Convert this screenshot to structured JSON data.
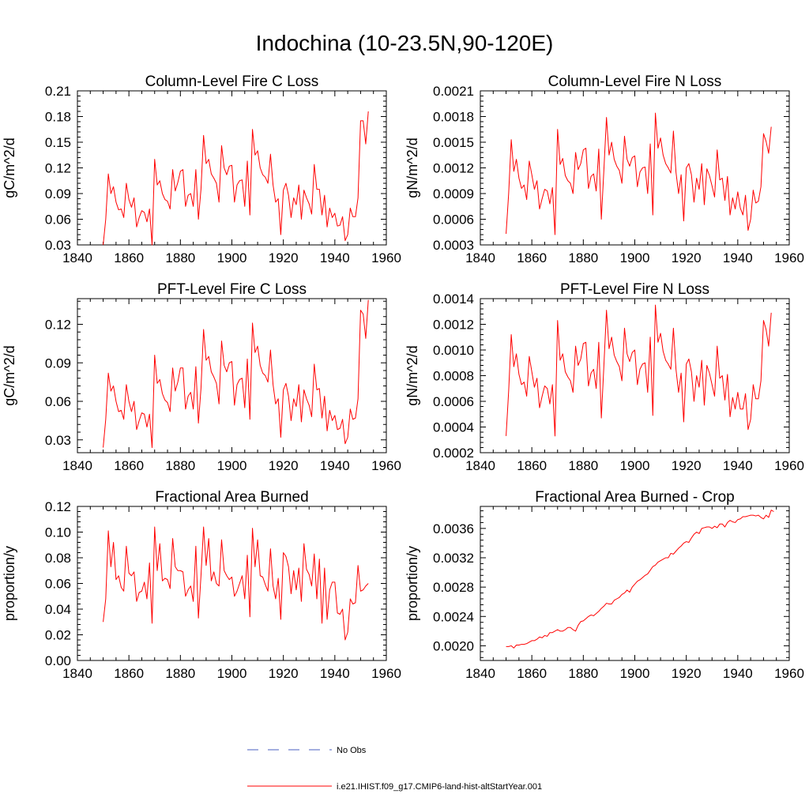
{
  "figure": {
    "title": "Indochina (10-23.5N,90-120E)"
  },
  "legend": [
    {
      "label": "No Obs",
      "color": "#4a5fc1",
      "style": "dashed"
    },
    {
      "label": "i.e21.IHIST.f09_g17.CMIP6-land-hist-altStartYear.001",
      "color": "#ff0000",
      "style": "solid"
    }
  ],
  "chart_data": [
    {
      "type": "line",
      "title": "Column-Level Fire C Loss",
      "ylabel": "gC/m^2/d",
      "xlabel": "",
      "xlim": [
        1840,
        1960
      ],
      "ylim": [
        0.03,
        0.21
      ],
      "xticks": [
        "1840",
        "1860",
        "1880",
        "1900",
        "1920",
        "1940",
        "1960"
      ],
      "yticks": [
        "0.03",
        "0.06",
        "0.09",
        "0.12",
        "0.15",
        "0.18",
        "0.21"
      ],
      "x_start": 1850,
      "series": [
        {
          "color": "#ff0000",
          "values": [
            0.03,
            0.06,
            0.113,
            0.09,
            0.098,
            0.08,
            0.071,
            0.072,
            0.062,
            0.102,
            0.083,
            0.074,
            0.085,
            0.051,
            0.062,
            0.07,
            0.068,
            0.057,
            0.072,
            0.03,
            0.13,
            0.1,
            0.105,
            0.09,
            0.083,
            0.081,
            0.072,
            0.118,
            0.093,
            0.103,
            0.116,
            0.118,
            0.075,
            0.088,
            0.09,
            0.075,
            0.118,
            0.06,
            0.095,
            0.158,
            0.125,
            0.13,
            0.113,
            0.108,
            0.102,
            0.08,
            0.146,
            0.12,
            0.112,
            0.122,
            0.123,
            0.08,
            0.1,
            0.105,
            0.106,
            0.075,
            0.128,
            0.065,
            0.165,
            0.135,
            0.14,
            0.12,
            0.112,
            0.109,
            0.102,
            0.136,
            0.1,
            0.08,
            0.084,
            0.042,
            0.094,
            0.102,
            0.088,
            0.062,
            0.085,
            0.077,
            0.1,
            0.06,
            0.094,
            0.085,
            0.078,
            0.066,
            0.124,
            0.095,
            0.095,
            0.065,
            0.088,
            0.051,
            0.073,
            0.062,
            0.067,
            0.052,
            0.053,
            0.063,
            0.035,
            0.042,
            0.073,
            0.063,
            0.063,
            0.085,
            0.175,
            0.175,
            0.148,
            0.186
          ]
        }
      ]
    },
    {
      "type": "line",
      "title": "Column-Level Fire N Loss",
      "ylabel": "gN/m^2/d",
      "xlabel": "",
      "xlim": [
        1840,
        1960
      ],
      "ylim": [
        0.0003,
        0.0021
      ],
      "xticks": [
        "1840",
        "1860",
        "1880",
        "1900",
        "1920",
        "1940",
        "1960"
      ],
      "yticks": [
        "0.0003",
        "0.0006",
        "0.0009",
        "0.0012",
        "0.0015",
        "0.0018",
        "0.0021"
      ],
      "x_start": 1850,
      "series": [
        {
          "color": "#ff0000",
          "values": [
            0.00043,
            0.0009,
            0.00153,
            0.00116,
            0.0013,
            0.00108,
            0.00096,
            0.001,
            0.00083,
            0.00128,
            0.00112,
            0.00095,
            0.00105,
            0.00072,
            0.00084,
            0.00095,
            0.00093,
            0.00078,
            0.00097,
            0.00042,
            0.00165,
            0.00124,
            0.00131,
            0.00111,
            0.00105,
            0.00102,
            0.0009,
            0.00138,
            0.00118,
            0.00125,
            0.00141,
            0.00143,
            0.00096,
            0.0011,
            0.00113,
            0.00093,
            0.00142,
            0.0006,
            0.00118,
            0.00179,
            0.00135,
            0.0015,
            0.0013,
            0.00122,
            0.00117,
            0.00102,
            0.00157,
            0.0013,
            0.00122,
            0.00132,
            0.00134,
            0.00098,
            0.00115,
            0.0012,
            0.00121,
            0.0009,
            0.00148,
            0.00065,
            0.00184,
            0.00143,
            0.00155,
            0.00135,
            0.00125,
            0.0012,
            0.00114,
            0.00163,
            0.00115,
            0.0009,
            0.00112,
            0.00058,
            0.0012,
            0.00125,
            0.00112,
            0.0008,
            0.00108,
            0.00095,
            0.00125,
            0.00077,
            0.00119,
            0.00111,
            0.00099,
            0.00086,
            0.00141,
            0.00106,
            0.00108,
            0.00082,
            0.0011,
            0.00065,
            0.00085,
            0.00072,
            0.00092,
            0.00073,
            0.00065,
            0.00088,
            0.00047,
            0.0006,
            0.00094,
            0.00079,
            0.00081,
            0.00098,
            0.0016,
            0.00151,
            0.00137,
            0.00168
          ]
        }
      ]
    },
    {
      "type": "line",
      "title": "PFT-Level Fire C Loss",
      "ylabel": "gC/m^2/d",
      "xlabel": "",
      "xlim": [
        1840,
        1960
      ],
      "ylim": [
        0.02,
        0.14
      ],
      "xticks": [
        "1840",
        "1860",
        "1880",
        "1900",
        "1920",
        "1940",
        "1960"
      ],
      "yticks": [
        "0.03",
        "0.06",
        "0.09",
        "0.12"
      ],
      "x_start": 1850,
      "series": [
        {
          "color": "#ff0000",
          "values": [
            0.024,
            0.046,
            0.082,
            0.068,
            0.072,
            0.06,
            0.052,
            0.053,
            0.046,
            0.073,
            0.06,
            0.052,
            0.06,
            0.038,
            0.045,
            0.051,
            0.05,
            0.04,
            0.05,
            0.024,
            0.096,
            0.074,
            0.077,
            0.066,
            0.061,
            0.059,
            0.052,
            0.086,
            0.068,
            0.075,
            0.086,
            0.086,
            0.054,
            0.064,
            0.067,
            0.054,
            0.087,
            0.043,
            0.07,
            0.116,
            0.092,
            0.095,
            0.083,
            0.079,
            0.074,
            0.058,
            0.107,
            0.088,
            0.083,
            0.09,
            0.091,
            0.057,
            0.073,
            0.077,
            0.078,
            0.055,
            0.093,
            0.046,
            0.121,
            0.098,
            0.103,
            0.088,
            0.082,
            0.08,
            0.075,
            0.1,
            0.073,
            0.058,
            0.062,
            0.032,
            0.069,
            0.074,
            0.064,
            0.045,
            0.062,
            0.056,
            0.073,
            0.044,
            0.069,
            0.062,
            0.057,
            0.048,
            0.089,
            0.069,
            0.07,
            0.047,
            0.064,
            0.037,
            0.053,
            0.045,
            0.049,
            0.038,
            0.039,
            0.046,
            0.027,
            0.032,
            0.054,
            0.046,
            0.047,
            0.062,
            0.131,
            0.128,
            0.109,
            0.139
          ]
        }
      ]
    },
    {
      "type": "line",
      "title": "PFT-Level Fire N Loss",
      "ylabel": "gN/m^2/d",
      "xlabel": "",
      "xlim": [
        1840,
        1960
      ],
      "ylim": [
        0.0002,
        0.0014
      ],
      "xticks": [
        "1840",
        "1860",
        "1880",
        "1900",
        "1920",
        "1940",
        "1960"
      ],
      "yticks": [
        "0.0002",
        "0.0004",
        "0.0006",
        "0.0008",
        "0.0010",
        "0.0012",
        "0.0014"
      ],
      "x_start": 1850,
      "series": [
        {
          "color": "#ff0000",
          "values": [
            0.00033,
            0.00068,
            0.00112,
            0.00087,
            0.00097,
            0.00081,
            0.00073,
            0.00075,
            0.00064,
            0.00095,
            0.00083,
            0.00071,
            0.00078,
            0.00055,
            0.00064,
            0.00072,
            0.0007,
            0.00058,
            0.00073,
            0.00033,
            0.00123,
            0.00092,
            0.00097,
            0.00083,
            0.00079,
            0.00076,
            0.00067,
            0.00103,
            0.00088,
            0.00093,
            0.00105,
            0.00106,
            0.00072,
            0.00082,
            0.00085,
            0.0007,
            0.00106,
            0.00047,
            0.00088,
            0.00131,
            0.00101,
            0.0011,
            0.00096,
            0.00091,
            0.00087,
            0.00076,
            0.00117,
            0.00097,
            0.00091,
            0.00098,
            0.001,
            0.00073,
            0.00085,
            0.00089,
            0.0009,
            0.00067,
            0.0011,
            0.00049,
            0.00135,
            0.00106,
            0.00113,
            0.00099,
            0.00092,
            0.00089,
            0.00085,
            0.00117,
            0.00085,
            0.00067,
            0.00082,
            0.00044,
            0.00089,
            0.00093,
            0.00083,
            0.0006,
            0.0008,
            0.00071,
            0.00092,
            0.00057,
            0.00088,
            0.00082,
            0.00073,
            0.00064,
            0.00103,
            0.00078,
            0.0008,
            0.00061,
            0.00081,
            0.00048,
            0.00063,
            0.00054,
            0.00067,
            0.00054,
            0.00054,
            0.00066,
            0.00038,
            0.00046,
            0.00073,
            0.00062,
            0.00062,
            0.00076,
            0.00123,
            0.00116,
            0.00103,
            0.00129
          ]
        }
      ]
    },
    {
      "type": "line",
      "title": "Fractional Area Burned",
      "ylabel": "proportion/y",
      "xlabel": "",
      "xlim": [
        1840,
        1960
      ],
      "ylim": [
        0.0,
        0.12
      ],
      "xticks": [
        "1840",
        "1860",
        "1880",
        "1900",
        "1920",
        "1940",
        "1960"
      ],
      "yticks": [
        "0.00",
        "0.02",
        "0.04",
        "0.06",
        "0.08",
        "0.10",
        "0.12"
      ],
      "x_start": 1850,
      "series": [
        {
          "color": "#ff0000",
          "values": [
            0.03,
            0.048,
            0.101,
            0.073,
            0.092,
            0.063,
            0.066,
            0.057,
            0.054,
            0.089,
            0.068,
            0.066,
            0.069,
            0.046,
            0.053,
            0.054,
            0.061,
            0.048,
            0.076,
            0.029,
            0.104,
            0.07,
            0.091,
            0.062,
            0.064,
            0.063,
            0.056,
            0.095,
            0.073,
            0.07,
            0.07,
            0.069,
            0.05,
            0.055,
            0.058,
            0.046,
            0.089,
            0.033,
            0.066,
            0.104,
            0.074,
            0.095,
            0.062,
            0.069,
            0.06,
            0.058,
            0.094,
            0.07,
            0.066,
            0.063,
            0.065,
            0.05,
            0.054,
            0.06,
            0.066,
            0.048,
            0.082,
            0.034,
            0.103,
            0.073,
            0.094,
            0.066,
            0.065,
            0.059,
            0.054,
            0.087,
            0.058,
            0.048,
            0.064,
            0.032,
            0.084,
            0.081,
            0.073,
            0.052,
            0.07,
            0.055,
            0.072,
            0.046,
            0.091,
            0.071,
            0.067,
            0.058,
            0.083,
            0.048,
            0.079,
            0.029,
            0.072,
            0.032,
            0.055,
            0.061,
            0.061,
            0.037,
            0.036,
            0.04,
            0.016,
            0.022,
            0.048,
            0.044,
            0.045,
            0.074,
            0.054,
            0.055,
            0.058,
            0.06
          ]
        }
      ]
    },
    {
      "type": "line",
      "title": "Fractional Area Burned - Crop",
      "ylabel": "proportion/y",
      "xlabel": "",
      "xlim": [
        1840,
        1960
      ],
      "ylim": [
        0.0018,
        0.0039
      ],
      "xticks": [
        "1840",
        "1860",
        "1880",
        "1900",
        "1920",
        "1940",
        "1960"
      ],
      "yticks": [
        "0.0020",
        "0.0024",
        "0.0028",
        "0.0032",
        "0.0036"
      ],
      "x_start": 1850,
      "series": [
        {
          "color": "#ff0000",
          "values": [
            0.00199,
            0.00199,
            0.002,
            0.00197,
            0.00201,
            0.00201,
            0.00202,
            0.00202,
            0.00203,
            0.00205,
            0.00207,
            0.00207,
            0.00209,
            0.00212,
            0.00211,
            0.00214,
            0.00213,
            0.00218,
            0.00218,
            0.0022,
            0.00222,
            0.0022,
            0.0022,
            0.00222,
            0.00225,
            0.00225,
            0.00222,
            0.0022,
            0.00228,
            0.00233,
            0.00234,
            0.00237,
            0.0024,
            0.00242,
            0.00241,
            0.00244,
            0.00247,
            0.00251,
            0.00254,
            0.00258,
            0.00257,
            0.00257,
            0.00262,
            0.00264,
            0.00266,
            0.0027,
            0.00272,
            0.00276,
            0.00273,
            0.0028,
            0.00284,
            0.00288,
            0.0029,
            0.00293,
            0.00296,
            0.00298,
            0.00303,
            0.00308,
            0.0031,
            0.00314,
            0.00316,
            0.00318,
            0.0032,
            0.0032,
            0.00326,
            0.00325,
            0.00329,
            0.00333,
            0.00336,
            0.0034,
            0.00342,
            0.00341,
            0.00347,
            0.00352,
            0.00355,
            0.00353,
            0.0036,
            0.00361,
            0.00362,
            0.00362,
            0.0036,
            0.00363,
            0.00361,
            0.00366,
            0.00366,
            0.00362,
            0.00368,
            0.00371,
            0.00369,
            0.00368,
            0.00372,
            0.00373,
            0.00376,
            0.00376,
            0.00377,
            0.00378,
            0.00378,
            0.00377,
            0.00378,
            0.00375,
            0.00373,
            0.00378,
            0.00375,
            0.00385,
            0.00383
          ]
        }
      ]
    }
  ]
}
